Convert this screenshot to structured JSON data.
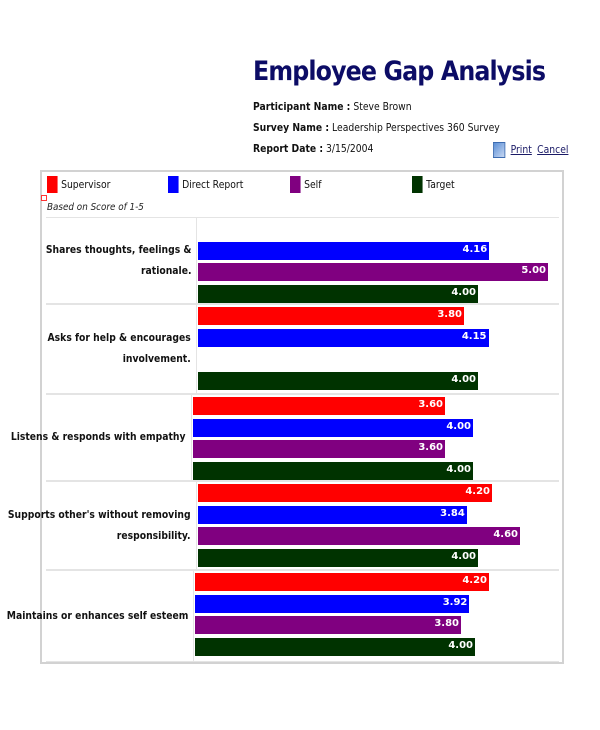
{
  "header": {
    "title": "Employee Gap Analysis",
    "participant_label": "Participant Name :",
    "participant_value": "Steve Brown",
    "survey_label": "Survey Name :",
    "survey_value": "Leadership Perspectives 360 Survey",
    "date_label": "Report Date :",
    "date_value": "3/15/2004",
    "print": "Print",
    "cancel": "Cancel"
  },
  "chart_data": {
    "type": "bar",
    "orientation": "horizontal",
    "note": "Based on Score of 1-5",
    "legend_position": "top",
    "categories": [
      "Shares thoughts, feelings & rationale.",
      "Asks for help & encourages involvement.",
      "Listens & responds with empathy",
      "Supports other's without removing responsibility.",
      "Maintains or enhances self esteem"
    ],
    "series": [
      {
        "name": "Supervisor",
        "color": "#ff0000",
        "values": [
          null,
          3.8,
          3.6,
          4.2,
          4.2
        ]
      },
      {
        "name": "Direct Report",
        "color": "#0000ff",
        "values": [
          4.16,
          4.15,
          4.0,
          3.84,
          3.92
        ]
      },
      {
        "name": "Self",
        "color": "#800080",
        "values": [
          5.0,
          null,
          3.6,
          4.6,
          3.8
        ]
      },
      {
        "name": "Target",
        "color": "#003300",
        "values": [
          4.0,
          4.0,
          4.0,
          4.0,
          4.0
        ]
      }
    ],
    "xlim": [
      0,
      5
    ],
    "grid": false
  }
}
